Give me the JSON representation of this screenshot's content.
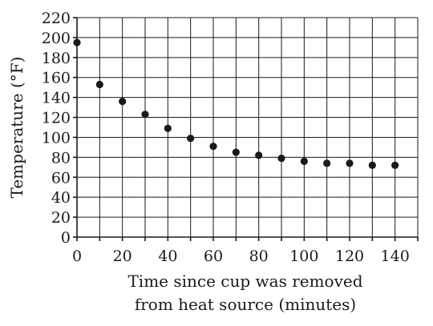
{
  "chart_data": {
    "type": "scatter",
    "title": "",
    "xlabel_lines": [
      "Time since cup was removed",
      "from heat source (minutes)"
    ],
    "ylabel": "Temperature (°F)",
    "xlim": [
      0,
      150
    ],
    "ylim": [
      0,
      220
    ],
    "x_ticks": [
      0,
      20,
      40,
      60,
      80,
      100,
      120,
      140
    ],
    "x_grid_step": 10,
    "y_ticks": [
      0,
      20,
      40,
      60,
      80,
      100,
      120,
      140,
      160,
      180,
      200,
      220
    ],
    "y_grid_step": 20,
    "grid": true,
    "points": [
      {
        "x": 0,
        "y": 195
      },
      {
        "x": 10,
        "y": 153
      },
      {
        "x": 20,
        "y": 136
      },
      {
        "x": 30,
        "y": 123
      },
      {
        "x": 40,
        "y": 109
      },
      {
        "x": 50,
        "y": 99
      },
      {
        "x": 60,
        "y": 91
      },
      {
        "x": 70,
        "y": 85
      },
      {
        "x": 80,
        "y": 82
      },
      {
        "x": 90,
        "y": 79
      },
      {
        "x": 100,
        "y": 76
      },
      {
        "x": 110,
        "y": 74
      },
      {
        "x": 120,
        "y": 74
      },
      {
        "x": 130,
        "y": 72
      },
      {
        "x": 140,
        "y": 72
      }
    ]
  }
}
